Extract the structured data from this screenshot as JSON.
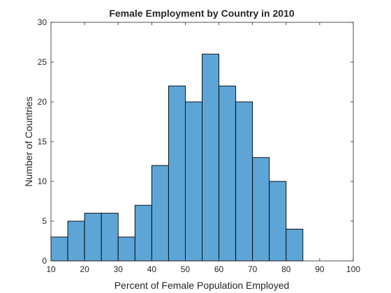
{
  "chart_data": {
    "type": "bar",
    "title": "Female Employment by Country in 2010",
    "xlabel": "Percent of Female Population Employed",
    "ylabel": "Number of Countries",
    "xlim": [
      10,
      100
    ],
    "ylim": [
      0,
      30
    ],
    "xticks": [
      "10",
      "20",
      "30",
      "40",
      "50",
      "60",
      "70",
      "80",
      "90",
      "100"
    ],
    "yticks": [
      "0",
      "5",
      "10",
      "15",
      "20",
      "25",
      "30"
    ],
    "bin_width": 5,
    "bins": [
      {
        "start": 10,
        "end": 15,
        "count": 3
      },
      {
        "start": 15,
        "end": 20,
        "count": 5
      },
      {
        "start": 20,
        "end": 25,
        "count": 6
      },
      {
        "start": 25,
        "end": 30,
        "count": 6
      },
      {
        "start": 30,
        "end": 35,
        "count": 3
      },
      {
        "start": 35,
        "end": 40,
        "count": 7
      },
      {
        "start": 40,
        "end": 45,
        "count": 12
      },
      {
        "start": 45,
        "end": 50,
        "count": 22
      },
      {
        "start": 50,
        "end": 55,
        "count": 20
      },
      {
        "start": 55,
        "end": 60,
        "count": 26
      },
      {
        "start": 60,
        "end": 65,
        "count": 22
      },
      {
        "start": 65,
        "end": 70,
        "count": 20
      },
      {
        "start": 70,
        "end": 75,
        "count": 13
      },
      {
        "start": 75,
        "end": 80,
        "count": 10
      },
      {
        "start": 80,
        "end": 85,
        "count": 4
      }
    ],
    "bar_color": "#5DA5D7",
    "edge_color": "#000000",
    "grid": false,
    "legend": "none"
  }
}
